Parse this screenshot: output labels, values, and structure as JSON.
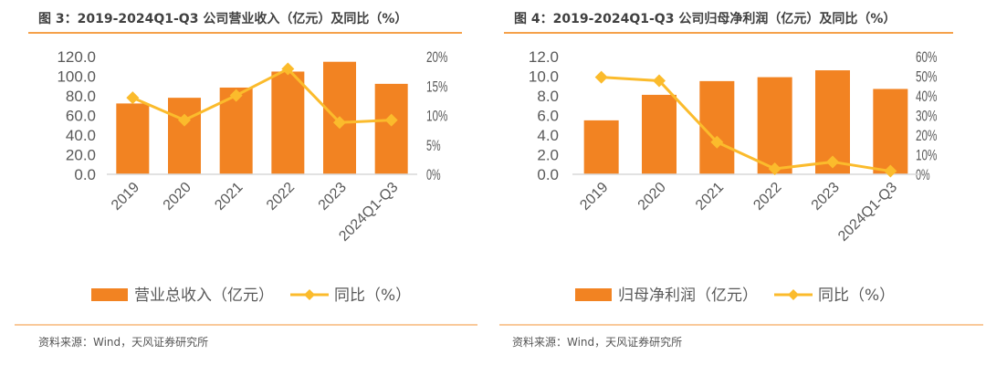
{
  "colors": {
    "bar": "#f28322",
    "line": "#fbbb2c",
    "rule": "#f5a14a",
    "axis": "#d9d9d9",
    "text": "#595959"
  },
  "chart_data": [
    {
      "type": "bar+line",
      "title": "图 3：2019-2024Q1-Q3 公司营业收入（亿元）及同比（%）",
      "categories": [
        "2019",
        "2020",
        "2021",
        "2022",
        "2023",
        "2024Q1-Q3"
      ],
      "series": [
        {
          "name": "营业总收入（亿元）",
          "type": "bar",
          "axis": "left",
          "values": [
            72.2,
            78.0,
            88.4,
            104.7,
            114.7,
            92.2
          ]
        },
        {
          "name": "同比（%）",
          "type": "line",
          "axis": "right",
          "values": [
            13.0,
            9.2,
            13.4,
            17.9,
            8.8,
            9.2
          ]
        }
      ],
      "ylim": [
        0,
        120
      ],
      "y2lim": [
        0,
        20
      ],
      "yticks": [
        "0.0",
        "20.0",
        "40.0",
        "60.0",
        "80.0",
        "100.0",
        "120.0"
      ],
      "y2ticks": [
        "0%",
        "5%",
        "10%",
        "15%",
        "20%"
      ],
      "legend": "bottom",
      "source": "资料来源：Wind，天风证券研究所"
    },
    {
      "type": "bar+line",
      "title": "图 4：2019-2024Q1-Q3 公司归母净利润（亿元）及同比（%）",
      "categories": [
        "2019",
        "2020",
        "2021",
        "2022",
        "2023",
        "2024Q1-Q3"
      ],
      "series": [
        {
          "name": "归母净利润（亿元）",
          "type": "bar",
          "axis": "left",
          "values": [
            5.5,
            8.1,
            9.5,
            9.9,
            10.6,
            8.7
          ]
        },
        {
          "name": "同比（%）",
          "type": "line",
          "axis": "right",
          "values": [
            49.5,
            47.7,
            16.4,
            2.8,
            6.3,
            1.6
          ]
        }
      ],
      "ylim": [
        0,
        12
      ],
      "y2lim": [
        0,
        60
      ],
      "yticks": [
        "0.0",
        "2.0",
        "4.0",
        "6.0",
        "8.0",
        "10.0",
        "12.0"
      ],
      "y2ticks": [
        "0%",
        "10%",
        "20%",
        "30%",
        "40%",
        "50%",
        "60%"
      ],
      "legend": "bottom",
      "source": "资料来源：Wind，天风证券研究所"
    }
  ]
}
